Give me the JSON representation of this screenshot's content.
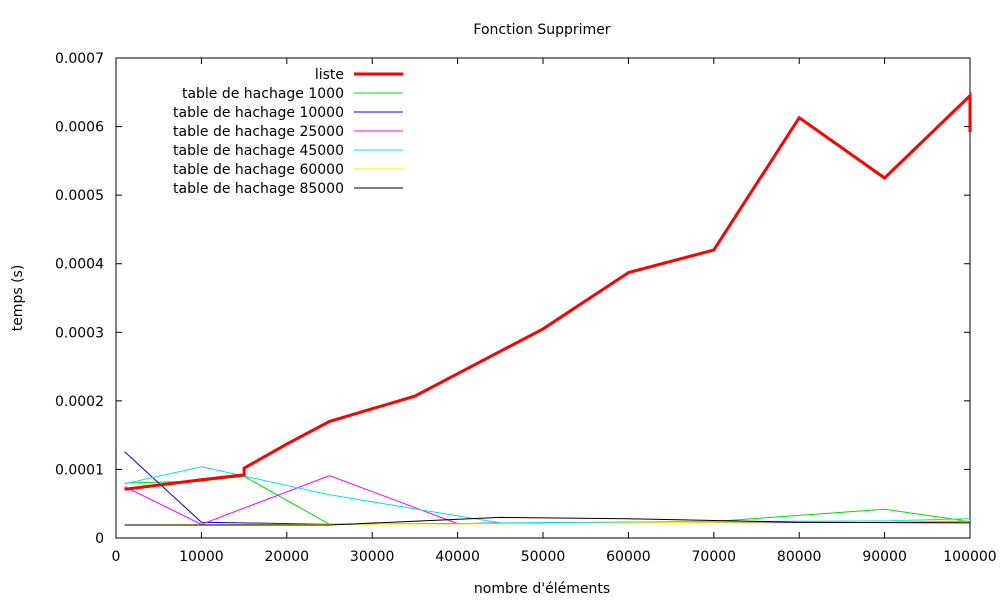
{
  "chart_data": {
    "type": "line",
    "title": "Fonction Supprimer",
    "xlabel": "nombre d'éléments",
    "ylabel": "temps (s)",
    "xlim": [
      0,
      100000
    ],
    "ylim": [
      0,
      0.0007
    ],
    "x_ticks": [
      "0",
      "10000",
      "20000",
      "30000",
      "40000",
      "50000",
      "60000",
      "70000",
      "80000",
      "90000",
      "100000"
    ],
    "y_ticks": [
      "0",
      "0.0001",
      "0.0002",
      "0.0003",
      "0.0004",
      "0.0005",
      "0.0006",
      "0.0007"
    ],
    "grid": false,
    "legend_position": "top-left",
    "series": [
      {
        "name": "liste",
        "color": "#ff0000",
        "points": [
          [
            1000,
            7.1e-05
          ],
          [
            10000,
            8.5e-05
          ],
          [
            15000,
            9.2e-05
          ],
          [
            15000,
            0.000102
          ],
          [
            20000,
            0.000137
          ],
          [
            25000,
            0.00017
          ],
          [
            35000,
            0.000207
          ],
          [
            50000,
            0.000305
          ],
          [
            60000,
            0.000387
          ],
          [
            70000,
            0.00042
          ],
          [
            80000,
            0.000613
          ],
          [
            90000,
            0.000525
          ],
          [
            100000,
            0.000645
          ],
          [
            100000,
            0.000592
          ]
        ]
      },
      {
        "name": "table de hachage 1000",
        "color": "#00dd00",
        "points": [
          [
            1000,
            8e-05
          ],
          [
            10000,
            8.3e-05
          ],
          [
            15000,
            9e-05
          ],
          [
            25000,
            2e-05
          ],
          [
            40000,
            2.1e-05
          ],
          [
            50000,
            2.2e-05
          ],
          [
            70000,
            2.4e-05
          ],
          [
            90000,
            4.2e-05
          ],
          [
            100000,
            2.4e-05
          ]
        ]
      },
      {
        "name": "table de hachage 10000",
        "color": "#0000ff",
        "points": [
          [
            1000,
            0.000126
          ],
          [
            10000,
            2.3e-05
          ],
          [
            25000,
            2e-05
          ],
          [
            40000,
            2.1e-05
          ],
          [
            50000,
            2.2e-05
          ],
          [
            70000,
            2.3e-05
          ],
          [
            90000,
            2.3e-05
          ],
          [
            100000,
            2.4e-05
          ]
        ]
      },
      {
        "name": "table de hachage 25000",
        "color": "#ff00ff",
        "points": [
          [
            1000,
            7.5e-05
          ],
          [
            10000,
            2e-05
          ],
          [
            25000,
            9.1e-05
          ],
          [
            40000,
            2.1e-05
          ],
          [
            50000,
            2.2e-05
          ],
          [
            70000,
            2.3e-05
          ],
          [
            90000,
            2.3e-05
          ],
          [
            100000,
            2.4e-05
          ]
        ]
      },
      {
        "name": "table de hachage 45000",
        "color": "#00e5ee",
        "points": [
          [
            1000,
            7.9e-05
          ],
          [
            10000,
            0.000104
          ],
          [
            25000,
            6.3e-05
          ],
          [
            45000,
            2.2e-05
          ],
          [
            70000,
            2.4e-05
          ],
          [
            90000,
            2.5e-05
          ],
          [
            100000,
            2.8e-05
          ]
        ]
      },
      {
        "name": "table de hachage 60000",
        "color": "#ffee00",
        "points": [
          [
            1000,
            1.9e-05
          ],
          [
            25000,
            2e-05
          ],
          [
            50000,
            2.1e-05
          ],
          [
            70000,
            2.3e-05
          ],
          [
            90000,
            2.4e-05
          ],
          [
            100000,
            2.5e-05
          ]
        ]
      },
      {
        "name": "table de hachage 85000",
        "color": "#000000",
        "points": [
          [
            1000,
            1.9e-05
          ],
          [
            25000,
            1.9e-05
          ],
          [
            45000,
            3e-05
          ],
          [
            60000,
            2.8e-05
          ],
          [
            80000,
            2.3e-05
          ],
          [
            100000,
            2.2e-05
          ]
        ]
      }
    ]
  }
}
